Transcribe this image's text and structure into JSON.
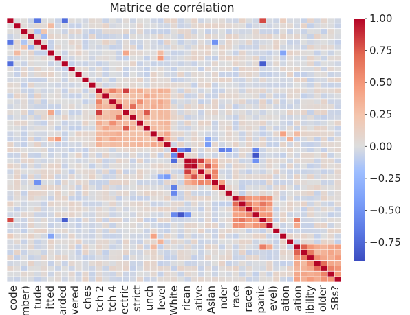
{
  "chart_data": {
    "type": "heatmap",
    "title": "Matrice de corrélation",
    "xlabel": "",
    "ylabel": "",
    "n": 49,
    "x_tick_labels": [
      "code",
      "mber)",
      "tude",
      "itted",
      "arded",
      "vered",
      "ches",
      "tch 2",
      "tch 4",
      "ectric",
      "strict",
      "unch",
      "level",
      "White",
      "rican",
      "ative",
      "Asian",
      "nder",
      "race",
      "race)",
      "panic",
      "evel)",
      "ation",
      "ation",
      "ibility",
      "older",
      "SBs?"
    ],
    "x_tick_indices": [
      0,
      2,
      4,
      6,
      8,
      10,
      12,
      14,
      16,
      18,
      20,
      22,
      24,
      26,
      28,
      30,
      32,
      34,
      36,
      38,
      40,
      42,
      44,
      46,
      48,
      50,
      52
    ],
    "colorbar": {
      "min": -0.9,
      "max": 1.0,
      "ticks": [
        1.0,
        0.75,
        0.5,
        0.25,
        0.0,
        -0.25,
        -0.5,
        -0.75
      ],
      "tick_labels": [
        "1.00",
        "0.75",
        "0.50",
        "0.25",
        "0.00",
        "−0.25",
        "−0.50",
        "−0.75"
      ],
      "colormap": "coolwarm",
      "low_color": "#3b4cc0",
      "mid_color": "#dddddd",
      "high_color": "#b40426"
    },
    "diagonal_value": 1.0,
    "default_value": 0.0,
    "clusters": [
      {
        "rows": [
          13,
          23
        ],
        "value": 0.38
      },
      {
        "rows": [
          26,
          30
        ],
        "value": 0.55
      },
      {
        "rows": [
          33,
          38
        ],
        "value": 0.6
      },
      {
        "rows": [
          42,
          48
        ],
        "value": 0.5
      }
    ],
    "cells": [
      [
        0,
        4,
        -0.65
      ],
      [
        0,
        40,
        0.15
      ],
      [
        0,
        37,
        0.82
      ],
      [
        2,
        4,
        -0.2
      ],
      [
        2,
        5,
        0.22
      ],
      [
        3,
        5,
        -0.25
      ],
      [
        4,
        6,
        -0.1
      ],
      [
        1,
        6,
        0.3
      ],
      [
        0,
        8,
        -0.7
      ],
      [
        13,
        17,
        0.85
      ],
      [
        17,
        20,
        0.78
      ],
      [
        13,
        15,
        0.6
      ],
      [
        15,
        19,
        0.55
      ],
      [
        16,
        18,
        0.7
      ],
      [
        6,
        17,
        0.42
      ],
      [
        7,
        22,
        0.5
      ],
      [
        6,
        22,
        0.3
      ],
      [
        26,
        27,
        0.95
      ],
      [
        26,
        28,
        0.85
      ],
      [
        27,
        29,
        0.8
      ],
      [
        28,
        30,
        0.6
      ],
      [
        29,
        30,
        0.55
      ],
      [
        24,
        25,
        -0.55
      ],
      [
        23,
        29,
        -0.45
      ],
      [
        22,
        29,
        -0.35
      ],
      [
        33,
        34,
        0.72
      ],
      [
        34,
        35,
        0.65
      ],
      [
        35,
        36,
        0.58
      ],
      [
        33,
        36,
        0.45
      ],
      [
        36,
        37,
        0.5
      ],
      [
        37,
        42,
        0.62
      ],
      [
        38,
        42,
        0.4
      ],
      [
        42,
        43,
        0.75
      ],
      [
        43,
        44,
        0.65
      ],
      [
        44,
        45,
        0.55
      ],
      [
        45,
        46,
        0.7
      ],
      [
        46,
        47,
        0.6
      ],
      [
        47,
        48,
        0.5
      ],
      [
        24,
        26,
        -0.7
      ],
      [
        24,
        31,
        -0.6
      ],
      [
        24,
        32,
        -0.55
      ],
      [
        30,
        31,
        0.45
      ],
      [
        25,
        36,
        -0.85
      ],
      [
        26,
        36,
        -0.5
      ],
      [
        24,
        36,
        -0.55
      ],
      [
        8,
        37,
        -0.8
      ],
      [
        4,
        30,
        -0.5
      ],
      [
        6,
        40,
        -0.4
      ],
      [
        21,
        40,
        0.45
      ],
      [
        22,
        41,
        0.35
      ],
      [
        21,
        42,
        0.3
      ]
    ]
  }
}
